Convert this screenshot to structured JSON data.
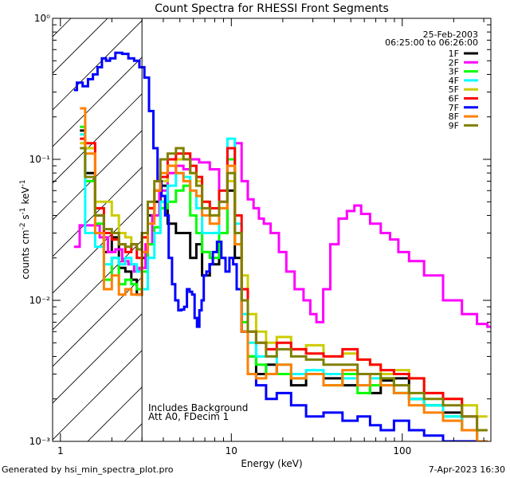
{
  "chart_data": {
    "type": "line",
    "title": "Count Spectra for RHESSI Front Segments",
    "xlabel": "Energy (keV)",
    "ylabel": "counts cm⁻² s⁻¹ keV⁻¹",
    "xscale": "log",
    "yscale": "log",
    "xlim": [
      0.9,
      330
    ],
    "ylim": [
      0.001,
      1
    ],
    "x_tick_labels": [
      "1",
      "10",
      "100"
    ],
    "y_tick_labels": [
      "10⁻³",
      "10⁻²",
      "10⁻¹",
      "10⁰"
    ],
    "date": "25-Feb-2003",
    "time_range": "06:25:00 to 06:26:00",
    "annotations": [
      "Includes Background",
      "Att A0, FDecim 1"
    ],
    "hatched_region": [
      0.9,
      3.0
    ],
    "legend_position": "top-right",
    "series": [
      {
        "name": "1F",
        "color": "#000000",
        "x": [
          1.3,
          1.5,
          1.7,
          1.9,
          2.1,
          2.3,
          2.5,
          2.7,
          2.9,
          3.1,
          3.4,
          3.7,
          4.0,
          4.5,
          5.0,
          5.5,
          6.0,
          6.5,
          7.0,
          8.0,
          9.0,
          10,
          11,
          12,
          13,
          15,
          17,
          20,
          25,
          30,
          40,
          50,
          60,
          70,
          80,
          100,
          120,
          150,
          200,
          250,
          300
        ],
        "y": [
          0.16,
          0.08,
          0.04,
          0.022,
          0.028,
          0.017,
          0.016,
          0.014,
          0.011,
          0.02,
          0.04,
          0.05,
          0.065,
          0.035,
          0.03,
          0.03,
          0.02,
          0.025,
          0.015,
          0.018,
          0.03,
          0.06,
          0.02,
          0.006,
          0.004,
          0.003,
          0.0035,
          0.003,
          0.0025,
          0.003,
          0.0028,
          0.0025,
          0.003,
          0.0022,
          0.0027,
          0.0028,
          0.002,
          0.0018,
          0.0016,
          0.0012,
          0.001
        ]
      },
      {
        "name": "2F",
        "color": "#ff00ff",
        "x": [
          1.2,
          1.4,
          1.6,
          1.8,
          2.0,
          2.2,
          2.4,
          2.6,
          2.8,
          3.0,
          3.3,
          3.6,
          4.0,
          4.5,
          5.0,
          5.5,
          6.0,
          7.0,
          8.0,
          9.0,
          10,
          11,
          12,
          13,
          14,
          15,
          16,
          18,
          20,
          22,
          25,
          28,
          30,
          33,
          36,
          40,
          45,
          50,
          55,
          60,
          70,
          80,
          90,
          100,
          120,
          150,
          200,
          250,
          300,
          330
        ],
        "y": [
          0.024,
          0.034,
          0.034,
          0.028,
          0.022,
          0.023,
          0.019,
          0.018,
          0.016,
          0.017,
          0.025,
          0.04,
          0.06,
          0.08,
          0.09,
          0.085,
          0.1,
          0.095,
          0.085,
          0.05,
          0.1,
          0.13,
          0.07,
          0.052,
          0.045,
          0.038,
          0.035,
          0.03,
          0.022,
          0.016,
          0.012,
          0.01,
          0.008,
          0.007,
          0.012,
          0.025,
          0.038,
          0.043,
          0.047,
          0.041,
          0.035,
          0.03,
          0.027,
          0.022,
          0.019,
          0.015,
          0.01,
          0.008,
          0.0068,
          0.0065
        ]
      },
      {
        "name": "3F",
        "color": "#00ff00",
        "x": [
          1.3,
          1.5,
          1.7,
          1.9,
          2.1,
          2.3,
          2.5,
          2.7,
          2.9,
          3.1,
          3.4,
          3.7,
          4.0,
          4.5,
          5.0,
          5.5,
          6.0,
          6.5,
          7.0,
          8.0,
          9.0,
          10,
          11,
          12,
          13,
          15,
          17,
          20,
          25,
          30,
          40,
          50,
          60,
          70,
          80,
          100,
          120,
          150,
          200,
          250,
          300
        ],
        "y": [
          0.17,
          0.07,
          0.035,
          0.014,
          0.02,
          0.013,
          0.014,
          0.013,
          0.012,
          0.016,
          0.025,
          0.033,
          0.045,
          0.05,
          0.06,
          0.065,
          0.04,
          0.03,
          0.022,
          0.02,
          0.03,
          0.1,
          0.025,
          0.007,
          0.004,
          0.0035,
          0.003,
          0.003,
          0.0028,
          0.003,
          0.0025,
          0.003,
          0.0022,
          0.0025,
          0.0028,
          0.0022,
          0.002,
          0.0018,
          0.0015,
          0.0012,
          0.001
        ]
      },
      {
        "name": "4F",
        "color": "#00ffff",
        "x": [
          1.3,
          1.5,
          1.7,
          1.9,
          2.1,
          2.3,
          2.5,
          2.7,
          2.9,
          3.1,
          3.4,
          3.7,
          4.0,
          4.5,
          5.0,
          5.5,
          6.0,
          6.5,
          7.0,
          8.0,
          9.0,
          10,
          11,
          12,
          13,
          15,
          17,
          20,
          25,
          30,
          40,
          50,
          60,
          70,
          80,
          100,
          120,
          150,
          200,
          250,
          300
        ],
        "y": [
          0.15,
          0.03,
          0.024,
          0.018,
          0.02,
          0.018,
          0.02,
          0.018,
          0.016,
          0.012,
          0.02,
          0.03,
          0.05,
          0.065,
          0.08,
          0.075,
          0.06,
          0.045,
          0.03,
          0.03,
          0.06,
          0.14,
          0.035,
          0.008,
          0.005,
          0.004,
          0.004,
          0.0035,
          0.003,
          0.0032,
          0.003,
          0.0028,
          0.0025,
          0.0028,
          0.0025,
          0.0022,
          0.002,
          0.0018,
          0.0015,
          0.0012,
          0.001
        ]
      },
      {
        "name": "5F",
        "color": "#cccc00",
        "x": [
          1.3,
          1.5,
          1.7,
          1.9,
          2.1,
          2.3,
          2.5,
          2.7,
          2.9,
          3.1,
          3.4,
          3.7,
          4.0,
          4.5,
          5.0,
          5.5,
          6.0,
          6.5,
          7.0,
          8.0,
          9.0,
          10,
          11,
          12,
          13,
          15,
          17,
          20,
          25,
          30,
          40,
          50,
          60,
          70,
          80,
          100,
          120,
          150,
          200,
          250,
          300
        ],
        "y": [
          0.13,
          0.12,
          0.05,
          0.05,
          0.04,
          0.03,
          0.028,
          0.025,
          0.023,
          0.028,
          0.045,
          0.06,
          0.07,
          0.09,
          0.1,
          0.11,
          0.08,
          0.07,
          0.05,
          0.04,
          0.045,
          0.07,
          0.03,
          0.015,
          0.008,
          0.006,
          0.005,
          0.0055,
          0.0045,
          0.0048,
          0.004,
          0.0042,
          0.0038,
          0.0035,
          0.003,
          0.0032,
          0.0028,
          0.0022,
          0.002,
          0.0018,
          0.0015
        ]
      },
      {
        "name": "6F",
        "color": "#ff0000",
        "x": [
          1.3,
          1.5,
          1.7,
          1.9,
          2.1,
          2.3,
          2.5,
          2.7,
          2.9,
          3.1,
          3.4,
          3.7,
          4.0,
          4.5,
          5.0,
          5.5,
          6.0,
          6.5,
          7.0,
          8.0,
          9.0,
          10,
          11,
          12,
          13,
          15,
          17,
          20,
          25,
          30,
          40,
          50,
          60,
          70,
          80,
          100,
          120,
          150,
          200,
          250,
          300
        ],
        "y": [
          0.14,
          0.13,
          0.045,
          0.03,
          0.027,
          0.025,
          0.022,
          0.025,
          0.02,
          0.028,
          0.045,
          0.06,
          0.075,
          0.1,
          0.11,
          0.11,
          0.09,
          0.075,
          0.05,
          0.045,
          0.06,
          0.12,
          0.04,
          0.012,
          0.006,
          0.005,
          0.0045,
          0.005,
          0.0045,
          0.0042,
          0.004,
          0.0045,
          0.0038,
          0.0035,
          0.0032,
          0.003,
          0.0028,
          0.0022,
          0.002,
          0.0015,
          0.0012
        ]
      },
      {
        "name": "7F",
        "color": "#0000ff",
        "x": [
          1.2,
          1.3,
          1.4,
          1.5,
          1.6,
          1.7,
          1.8,
          1.9,
          2.0,
          2.2,
          2.4,
          2.6,
          2.8,
          3.0,
          3.2,
          3.4,
          3.6,
          3.8,
          4.0,
          4.2,
          4.4,
          4.6,
          4.8,
          5.0,
          5.2,
          5.4,
          5.6,
          5.8,
          6.0,
          6.2,
          6.4,
          6.6,
          6.8,
          7.0,
          7.3,
          7.6,
          8.0,
          8.5,
          9.0,
          9.5,
          10,
          10.5,
          11,
          12,
          13,
          15,
          17,
          20,
          25,
          30,
          40,
          50,
          60,
          70,
          80,
          100,
          120,
          150,
          200,
          250,
          300
        ],
        "y": [
          0.31,
          0.35,
          0.33,
          0.37,
          0.4,
          0.45,
          0.52,
          0.5,
          0.52,
          0.57,
          0.56,
          0.52,
          0.5,
          0.45,
          0.38,
          0.22,
          0.12,
          0.07,
          0.055,
          0.04,
          0.02,
          0.013,
          0.01,
          0.0085,
          0.0086,
          0.009,
          0.012,
          0.0115,
          0.011,
          0.0075,
          0.0065,
          0.0085,
          0.01,
          0.015,
          0.016,
          0.018,
          0.022,
          0.026,
          0.02,
          0.016,
          0.02,
          0.018,
          0.012,
          0.006,
          0.003,
          0.0025,
          0.002,
          0.0022,
          0.0018,
          0.0015,
          0.0016,
          0.0014,
          0.0015,
          0.0013,
          0.0012,
          0.0014,
          0.0012,
          0.0011,
          0.001,
          0.001,
          0.001
        ]
      },
      {
        "name": "8F",
        "color": "#ff8000",
        "x": [
          1.3,
          1.5,
          1.7,
          1.9,
          2.1,
          2.3,
          2.5,
          2.7,
          2.9,
          3.1,
          3.4,
          3.7,
          4.0,
          4.5,
          5.0,
          5.5,
          6.0,
          6.5,
          7.0,
          8.0,
          9.0,
          10,
          11,
          12,
          13,
          15,
          17,
          20,
          25,
          30,
          40,
          50,
          60,
          70,
          80,
          100,
          120,
          150,
          200,
          250,
          300
        ],
        "y": [
          0.23,
          0.11,
          0.03,
          0.012,
          0.015,
          0.011,
          0.012,
          0.011,
          0.011,
          0.022,
          0.035,
          0.06,
          0.08,
          0.09,
          0.08,
          0.07,
          0.06,
          0.055,
          0.04,
          0.035,
          0.045,
          0.09,
          0.025,
          0.006,
          0.003,
          0.0028,
          0.003,
          0.0035,
          0.0028,
          0.003,
          0.0025,
          0.0032,
          0.0025,
          0.003,
          0.0025,
          0.0022,
          0.0018,
          0.0016,
          0.0014,
          0.0012,
          0.001
        ]
      },
      {
        "name": "9F",
        "color": "#808000",
        "x": [
          1.3,
          1.5,
          1.7,
          1.9,
          2.1,
          2.3,
          2.5,
          2.7,
          2.9,
          3.1,
          3.4,
          3.7,
          4.0,
          4.5,
          5.0,
          5.5,
          6.0,
          6.5,
          7.0,
          8.0,
          9.0,
          10,
          11,
          12,
          13,
          15,
          17,
          20,
          25,
          30,
          40,
          50,
          60,
          70,
          80,
          100,
          120,
          150,
          200,
          250,
          300
        ],
        "y": [
          0.12,
          0.075,
          0.04,
          0.032,
          0.03,
          0.025,
          0.024,
          0.025,
          0.023,
          0.03,
          0.05,
          0.07,
          0.1,
          0.11,
          0.12,
          0.1,
          0.08,
          0.065,
          0.045,
          0.04,
          0.05,
          0.08,
          0.03,
          0.01,
          0.006,
          0.005,
          0.004,
          0.0045,
          0.004,
          0.0038,
          0.0035,
          0.0035,
          0.003,
          0.003,
          0.0028,
          0.0025,
          0.0022,
          0.002,
          0.0018,
          0.0015,
          0.0012
        ]
      }
    ]
  },
  "footer": {
    "left": "Generated by hsi_min_spectra_plot.pro",
    "right": "7-Apr-2023 16:30"
  }
}
